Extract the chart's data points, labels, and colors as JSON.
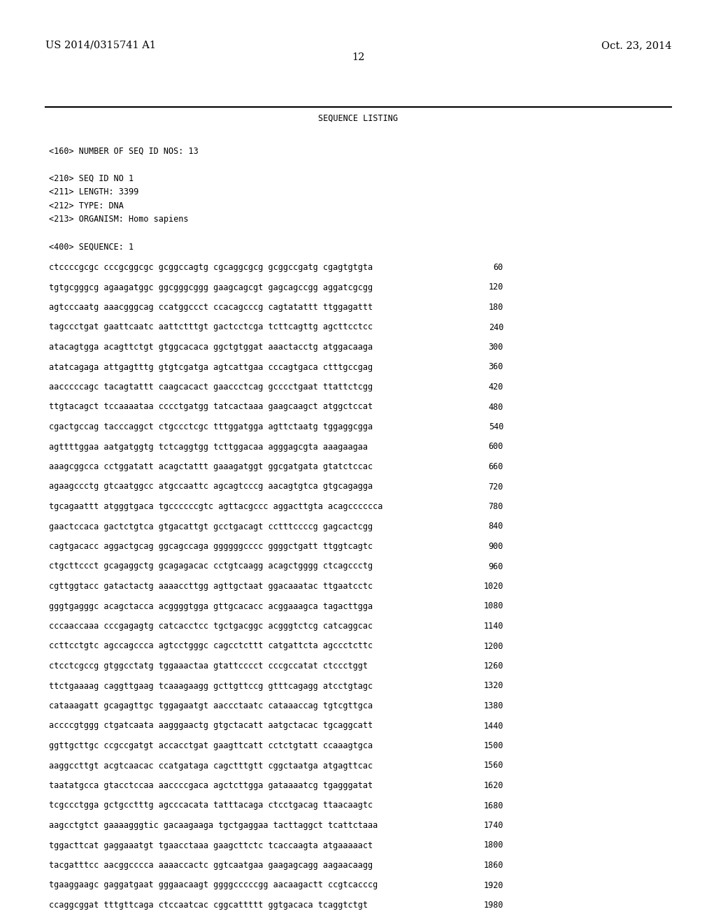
{
  "header_left": "US 2014/0315741 A1",
  "header_right": "Oct. 23, 2014",
  "page_number": "12",
  "section_title": "SEQUENCE LISTING",
  "metadata_lines": [
    "<160> NUMBER OF SEQ ID NOS: 13",
    "",
    "<210> SEQ ID NO 1",
    "<211> LENGTH: 3399",
    "<212> TYPE: DNA",
    "<213> ORGANISM: Homo sapiens",
    "",
    "<400> SEQUENCE: 1"
  ],
  "sequence_lines": [
    [
      "ctccccgcgc cccgcggcgc gcggccagtg cgcaggcgcg gcggccgatg cgagtgtgta",
      "60"
    ],
    [
      "tgtgcgggcg agaagatggc ggcgggcggg gaagcagcgt gagcagccgg aggatcgcgg",
      "120"
    ],
    [
      "agtcccaatg aaacgggcag ccatggccct ccacagcccg cagtatattt ttggagattt",
      "180"
    ],
    [
      "tagccctgat gaattcaatc aattctttgt gactcctcga tcttcagttg agcttcctcc",
      "240"
    ],
    [
      "atacagtgga acagttctgt gtggcacaca ggctgtggat aaactacctg atggacaaga",
      "300"
    ],
    [
      "atatcagaga attgagtttg gtgtcgatga agtcattgaa cccagtgaca ctttgccgag",
      "360"
    ],
    [
      "aacccccagc tacagtattt caagcacact gaaccctcag gcccctgaat ttattctcgg",
      "420"
    ],
    [
      "ttgtacagct tccaaaataa cccctgatgg tatcactaaa gaagcaagct atggctccat",
      "480"
    ],
    [
      "cgactgccag tacccaggct ctgccctcgc tttggatgga agttctaatg tggaggcgga",
      "540"
    ],
    [
      "agttttggaa aatgatggtg tctcaggtgg tcttggacaa agggagcgta aaagaagaa",
      "600"
    ],
    [
      "aaagcggcca cctggatatt acagctattt gaaagatggt ggcgatgata gtatctccac",
      "660"
    ],
    [
      "agaagccctg gtcaatggcc atgccaattc agcagtcccg aacagtgtca gtgcagagga",
      "720"
    ],
    [
      "tgcagaattt atgggtgaca tgccccccgtc agttacgccc aggacttgta acagcccccca",
      "780"
    ],
    [
      "gaactccaca gactctgtca gtgacattgt gcctgacagt cctttccccg gagcactcgg",
      "840"
    ],
    [
      "cagtgacacc aggactgcag ggcagccaga ggggggcccc ggggctgatt ttggtcagtc",
      "900"
    ],
    [
      "ctgcttccct gcagaggctg gcagagacac cctgtcaagg acagctgggg ctcagccctg",
      "960"
    ],
    [
      "cgttggtacc gatactactg aaaaccttgg agttgctaat ggacaaatac ttgaatcctc",
      "1020"
    ],
    [
      "gggtgagggc acagctacca acggggtgga gttgcacacc acggaaagca tagacttgga",
      "1080"
    ],
    [
      "cccaaccaaa cccgagagtg catcacctcc tgctgacggc acgggtctcg catcaggcac",
      "1140"
    ],
    [
      "ccttcctgtc agccagccca agtcctgggc cagcctcttt catgattcta agccctcttc",
      "1200"
    ],
    [
      "ctcctcgccg gtggcctatg tggaaactaa gtattcccct cccgccatat ctccctggt",
      "1260"
    ],
    [
      "ttctgaaaag caggttgaag tcaaagaagg gcttgttccg gtttcagagg atcctgtagc",
      "1320"
    ],
    [
      "cataaagatt gcagagttgc tggagaatgt aaccctaatc cataaaccag tgtcgttgca",
      "1380"
    ],
    [
      "accccgtggg ctgatcaata aagggaactg gtgctacatt aatgctacac tgcaggcatt",
      "1440"
    ],
    [
      "ggttgcttgc ccgccgatgt accacctgat gaagttcatt cctctgtatt ccaaagtgca",
      "1500"
    ],
    [
      "aaggccttgt acgtcaacac ccatgataga cagctttgtt cggctaatga atgagttcac",
      "1560"
    ],
    [
      "taatatgcca gtacctccaa aaccccgaca agctcttgga gataaaatcg tgagggatat",
      "1620"
    ],
    [
      "tcgccctgga gctgcctttg agcccacata tatttacaga ctcctgacag ttaacaagtc",
      "1680"
    ],
    [
      "aagcctgtct gaaaagggtic gacaagaaga tgctgaggaa tacttaggct tcattctaaa",
      "1740"
    ],
    [
      "tggacttcat gaggaaatgt tgaacctaaa gaagcttctc tcaccaagta atgaaaaact",
      "1800"
    ],
    [
      "tacgatttcc aacggcccca aaaaccactc ggtcaatgaa gaagagcagg aagaacaagg",
      "1860"
    ],
    [
      "tgaaggaagc gaggatgaat gggaacaagt ggggcccccgg aacaagactt ccgtcacccg",
      "1920"
    ],
    [
      "ccaggcggat tttgttcaga ctccaatcac cggcattttt ggtgacaca tcaggtctgt",
      "1980"
    ]
  ],
  "background_color": "#ffffff",
  "text_color": "#000000",
  "font_size_header": 10.5,
  "font_size_body": 8.5,
  "font_size_section": 8.5
}
